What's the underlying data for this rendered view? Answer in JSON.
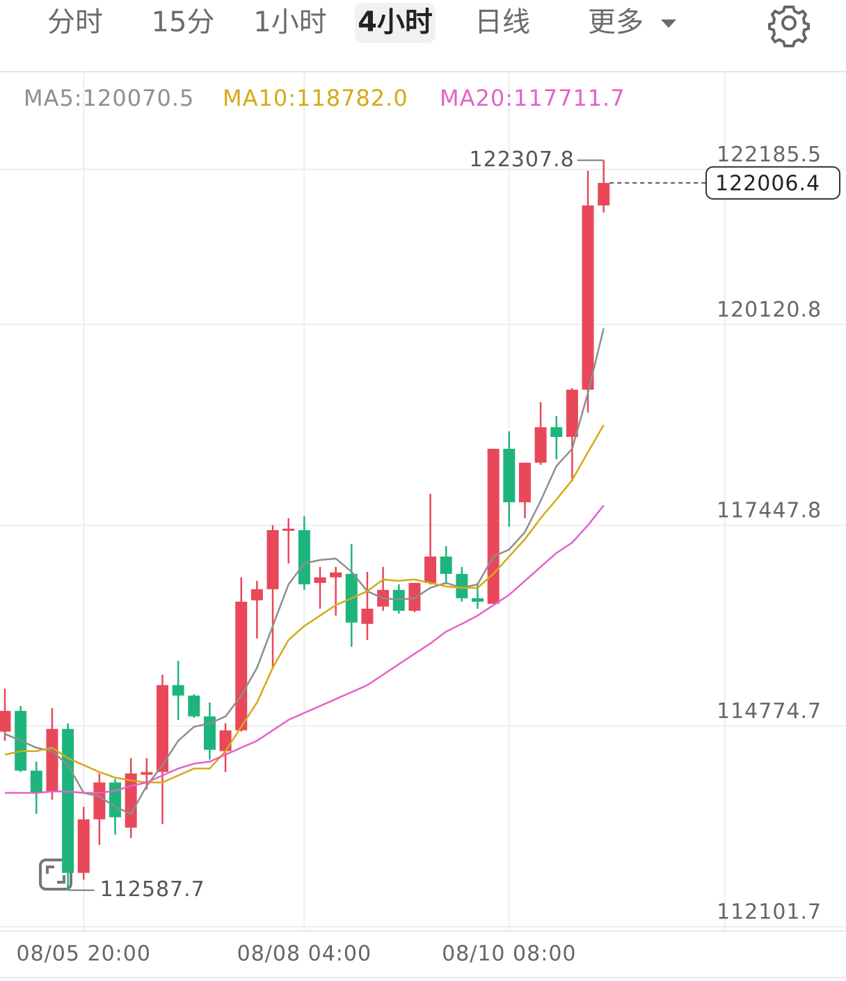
{
  "tabs": [
    "分时",
    "15分",
    "1小时",
    "4小时",
    "日线",
    "更多"
  ],
  "active_tab": 3,
  "chart_data": {
    "type": "candlestick",
    "categories": [
      null,
      null,
      null,
      null,
      null,
      "08/05 20:00",
      null,
      null,
      null,
      null,
      null,
      null,
      null,
      null,
      null,
      null,
      null,
      null,
      null,
      "08/08 04:00",
      null,
      null,
      null,
      null,
      null,
      null,
      null,
      null,
      null,
      null,
      null,
      null,
      "08/10 08:00",
      null,
      null,
      null,
      null,
      null,
      null
    ],
    "open": [
      114699,
      114976,
      114180,
      113903,
      114736,
      112819,
      113532,
      114023,
      113421,
      114125,
      114162,
      115319,
      115180,
      114902,
      114440,
      114717,
      116448,
      116596,
      117374,
      117383,
      116680,
      116754,
      116800,
      116134,
      116365,
      116587,
      116309,
      116680,
      117031,
      116800,
      116476,
      116402,
      118466,
      117754,
      118281,
      118753,
      118624,
      119253,
      121706
    ],
    "high": [
      115273,
      115041,
      114301,
      115013,
      114810,
      113699,
      114143,
      114069,
      114347,
      114347,
      115458,
      115643,
      115199,
      115088,
      114810,
      116754,
      116707,
      117448,
      117541,
      117568,
      116893,
      116893,
      117198,
      116828,
      116893,
      116661,
      116680,
      117865,
      117170,
      116893,
      116680,
      118466,
      118698,
      118281,
      119087,
      118901,
      119272,
      122169,
      122307.8
    ],
    "low": [
      114578,
      114162,
      113606,
      113792,
      112587.7,
      112727,
      113190,
      113329,
      113282,
      113930,
      113468,
      114856,
      114884,
      114328,
      114162,
      114700,
      115939,
      115550,
      116939,
      116587,
      116337,
      116245,
      115828,
      115921,
      116309,
      116272,
      116291,
      116661,
      116661,
      116430,
      116337,
      116402,
      117430,
      117541,
      118253,
      118327,
      118031,
      118948,
      121613
    ],
    "close": [
      114976,
      114180,
      113884,
      114736,
      112819,
      113532,
      114023,
      113560,
      114143,
      114162,
      115319,
      115180,
      114902,
      114458,
      114717,
      116430,
      116596,
      117383,
      117402,
      116661,
      116754,
      116819,
      116152,
      116337,
      116587,
      116309,
      116680,
      117031,
      116800,
      116476,
      116430,
      118466,
      117754,
      118281,
      118753,
      118624,
      119253,
      121706,
      122006.4
    ],
    "up_color": "#e8485a",
    "down_color": "#1db57b",
    "series": [
      {
        "name": "MA5:120070.5",
        "color": "#8e8e8e",
        "values": [
          114671,
          114578,
          114486,
          114440,
          114254,
          113884,
          113838,
          113699,
          113606,
          113977,
          114254,
          114578,
          114764,
          114810,
          114902,
          115180,
          115550,
          116106,
          116661,
          116939,
          116985,
          117004,
          116828,
          116569,
          116476,
          116457,
          116476,
          116615,
          116680,
          116615,
          116661,
          117031,
          117124,
          117356,
          117772,
          118235,
          118466,
          119207,
          120070.5
        ]
      },
      {
        "name": "MA10:118782.0",
        "color": "#d4aa14",
        "values": [
          114393,
          114440,
          114440,
          114486,
          114347,
          114254,
          114162,
          114088,
          114051,
          114023,
          114023,
          114116,
          114208,
          114208,
          114440,
          114764,
          115088,
          115550,
          115921,
          116106,
          116245,
          116384,
          116476,
          116569,
          116726,
          116707,
          116726,
          116680,
          116633,
          116615,
          116615,
          116800,
          117031,
          117263,
          117541,
          117791,
          118049,
          118420,
          118782.0
        ]
      },
      {
        "name": "MA20:117711.7",
        "color": "#e462c8",
        "values": [
          113884,
          113884,
          113884,
          113903,
          113903,
          113884,
          113884,
          113912,
          113977,
          114023,
          114116,
          114208,
          114273,
          114301,
          114393,
          114486,
          114578,
          114717,
          114856,
          114949,
          115041,
          115134,
          115226,
          115319,
          115458,
          115597,
          115736,
          115874,
          116032,
          116134,
          116245,
          116384,
          116522,
          116707,
          116893,
          117078,
          117217,
          117448,
          117711.7
        ]
      }
    ],
    "ylim": [
      112000,
      122700
    ],
    "yticks": [
      122185.5,
      120120.8,
      117447.8,
      114774.7,
      112101.7
    ],
    "grid": true
  }
}
